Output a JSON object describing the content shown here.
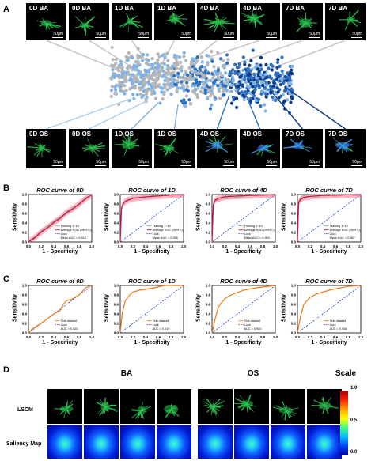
{
  "panels": {
    "a": "A",
    "b": "B",
    "c": "C",
    "d": "D"
  },
  "scale_bar_label": "50μm",
  "panel_a": {
    "top_tiles": [
      "0D BA",
      "0D BA",
      "1D BA",
      "1D BA",
      "4D BA",
      "4D BA",
      "7D BA",
      "7D BA"
    ],
    "bottom_tiles": [
      "0D OS",
      "0D OS",
      "1D OS",
      "1D OS",
      "4D OS",
      "4D OS",
      "7D OS",
      "7D OS"
    ],
    "colors": {
      "light": "#7fb3e6",
      "mid": "#2d6fc0",
      "dark": "#0d3c8a",
      "grey": "#b7b7b7"
    }
  },
  "panel_b": [
    {
      "title": "ROC curve of 0D",
      "legend": [
        "Training 1~10",
        "Average ROC (95% CI)",
        "Luck",
        "Mean AUC = 0.515"
      ]
    },
    {
      "title": "ROC curve of 1D",
      "legend": [
        "Training 1~10",
        "Average ROC (95% CI)",
        "Luck",
        "Mean AUC = 0.936"
      ]
    },
    {
      "title": "ROC curve of 4D",
      "legend": [
        "Training 1~10",
        "Average ROC (95% CI)",
        "Luck",
        "Mean AUC = 0.953"
      ]
    },
    {
      "title": "ROC curve of 7D",
      "legend": [
        "Training 1~10",
        "Average ROC (95% CI)",
        "Luck",
        "Mean AUC = 0.967"
      ]
    }
  ],
  "panel_c": [
    {
      "title": "ROC curve of 0D",
      "legend": [
        "Test dataset",
        "Luck",
        "AUC = 0.520"
      ]
    },
    {
      "title": "ROC curve of 1D",
      "legend": [
        "Test dataset",
        "Luck",
        "AUC = 0.919"
      ]
    },
    {
      "title": "ROC curve of 4D",
      "legend": [
        "Test dataset",
        "Luck",
        "AUC = 0.950"
      ]
    },
    {
      "title": "ROC curve of 7D",
      "legend": [
        "Test dataset",
        "Luck",
        "AUC = 0.906"
      ]
    }
  ],
  "axes": {
    "x": "1 - Specificity",
    "y": "Sensitivity",
    "ticks": [
      "0.0",
      "0.2",
      "0.4",
      "0.6",
      "0.8",
      "1.0"
    ]
  },
  "panel_d": {
    "col_ba": "BA",
    "col_os": "OS",
    "col_scale": "Scale",
    "row_lscm": "LSCM",
    "row_saliency": "Saliency Map",
    "colorbar_ticks": [
      "1.0",
      "0.5",
      "0.0"
    ]
  },
  "chart_data": [
    {
      "type": "line",
      "title": "ROC curve of 0D",
      "xlabel": "1 - Specificity",
      "ylabel": "Sensitivity",
      "xlim": [
        0,
        1
      ],
      "ylim": [
        0,
        1
      ],
      "series": [
        {
          "name": "Average ROC (95% CI)",
          "x": [
            0,
            0.1,
            0.2,
            0.3,
            0.4,
            0.5,
            0.6,
            0.7,
            0.8,
            0.9,
            1
          ],
          "y": [
            0,
            0.09,
            0.21,
            0.3,
            0.41,
            0.5,
            0.62,
            0.7,
            0.8,
            0.91,
            1
          ]
        },
        {
          "name": "Luck",
          "x": [
            0,
            1
          ],
          "y": [
            0,
            1
          ]
        }
      ],
      "annotation": "Mean AUC = 0.515"
    },
    {
      "type": "line",
      "title": "ROC curve of 1D",
      "xlabel": "1 - Specificity",
      "ylabel": "Sensitivity",
      "xlim": [
        0,
        1
      ],
      "ylim": [
        0,
        1
      ],
      "series": [
        {
          "name": "Average ROC (95% CI)",
          "x": [
            0,
            0.02,
            0.05,
            0.1,
            0.2,
            0.4,
            0.6,
            0.8,
            1
          ],
          "y": [
            0,
            0.72,
            0.82,
            0.87,
            0.92,
            0.95,
            0.97,
            0.99,
            1
          ]
        },
        {
          "name": "Luck",
          "x": [
            0,
            1
          ],
          "y": [
            0,
            1
          ]
        }
      ],
      "annotation": "Mean AUC = 0.936"
    },
    {
      "type": "line",
      "title": "ROC curve of 4D",
      "xlabel": "1 - Specificity",
      "ylabel": "Sensitivity",
      "xlim": [
        0,
        1
      ],
      "ylim": [
        0,
        1
      ],
      "series": [
        {
          "name": "Average ROC (95% CI)",
          "x": [
            0,
            0.02,
            0.05,
            0.1,
            0.2,
            0.4,
            0.6,
            0.8,
            1
          ],
          "y": [
            0,
            0.78,
            0.88,
            0.92,
            0.95,
            0.97,
            0.98,
            0.99,
            1
          ]
        },
        {
          "name": "Luck",
          "x": [
            0,
            1
          ],
          "y": [
            0,
            1
          ]
        }
      ],
      "annotation": "Mean AUC = 0.953"
    },
    {
      "type": "line",
      "title": "ROC curve of 7D",
      "xlabel": "1 - Specificity",
      "ylabel": "Sensitivity",
      "xlim": [
        0,
        1
      ],
      "ylim": [
        0,
        1
      ],
      "series": [
        {
          "name": "Average ROC (95% CI)",
          "x": [
            0,
            0.02,
            0.05,
            0.1,
            0.2,
            0.4,
            0.6,
            0.8,
            1
          ],
          "y": [
            0,
            0.84,
            0.9,
            0.94,
            0.96,
            0.98,
            0.99,
            0.995,
            1
          ]
        },
        {
          "name": "Luck",
          "x": [
            0,
            1
          ],
          "y": [
            0,
            1
          ]
        }
      ],
      "annotation": "Mean AUC = 0.967"
    },
    {
      "type": "line",
      "title": "ROC curve of 0D",
      "xlabel": "1 - Specificity",
      "ylabel": "Sensitivity",
      "xlim": [
        0,
        1
      ],
      "ylim": [
        0,
        1
      ],
      "series": [
        {
          "name": "Test dataset",
          "x": [
            0,
            0.05,
            0.1,
            0.2,
            0.3,
            0.4,
            0.5,
            0.55,
            0.6,
            0.7,
            0.8,
            0.9,
            1
          ],
          "y": [
            0,
            0.07,
            0.12,
            0.2,
            0.3,
            0.4,
            0.47,
            0.6,
            0.68,
            0.72,
            0.8,
            0.95,
            1
          ]
        },
        {
          "name": "Luck",
          "x": [
            0,
            1
          ],
          "y": [
            0,
            1
          ]
        }
      ],
      "annotation": "AUC = 0.520"
    },
    {
      "type": "line",
      "title": "ROC curve of 1D",
      "xlabel": "1 - Specificity",
      "ylabel": "Sensitivity",
      "xlim": [
        0,
        1
      ],
      "ylim": [
        0,
        1
      ],
      "series": [
        {
          "name": "Test dataset",
          "x": [
            0,
            0.03,
            0.08,
            0.15,
            0.2,
            0.3,
            0.5,
            0.7,
            1
          ],
          "y": [
            0,
            0.4,
            0.68,
            0.8,
            0.86,
            0.9,
            0.94,
            1,
            1
          ]
        },
        {
          "name": "Luck",
          "x": [
            0,
            1
          ],
          "y": [
            0,
            1
          ]
        }
      ],
      "annotation": "AUC = 0.919"
    },
    {
      "type": "line",
      "title": "ROC curve of 4D",
      "xlabel": "1 - Specificity",
      "ylabel": "Sensitivity",
      "xlim": [
        0,
        1
      ],
      "ylim": [
        0,
        1
      ],
      "series": [
        {
          "name": "Test dataset",
          "x": [
            0,
            0.05,
            0.1,
            0.2,
            0.3,
            0.4,
            0.5,
            0.7,
            1
          ],
          "y": [
            0,
            0.3,
            0.55,
            0.72,
            0.8,
            0.85,
            0.9,
            0.95,
            1
          ]
        },
        {
          "name": "Luck",
          "x": [
            0,
            1
          ],
          "y": [
            0,
            1
          ]
        }
      ],
      "annotation": "AUC = 0.950"
    },
    {
      "type": "line",
      "title": "ROC curve of 7D",
      "xlabel": "1 - Specificity",
      "ylabel": "Sensitivity",
      "xlim": [
        0,
        1
      ],
      "ylim": [
        0,
        1
      ],
      "series": [
        {
          "name": "Test dataset",
          "x": [
            0,
            0.05,
            0.1,
            0.2,
            0.3,
            0.4,
            0.5,
            0.6,
            0.8,
            1
          ],
          "y": [
            0,
            0.35,
            0.6,
            0.75,
            0.82,
            0.86,
            0.9,
            0.93,
            0.98,
            1
          ]
        },
        {
          "name": "Luck",
          "x": [
            0,
            1
          ],
          "y": [
            0,
            1
          ]
        }
      ],
      "annotation": "AUC = 0.906"
    }
  ]
}
